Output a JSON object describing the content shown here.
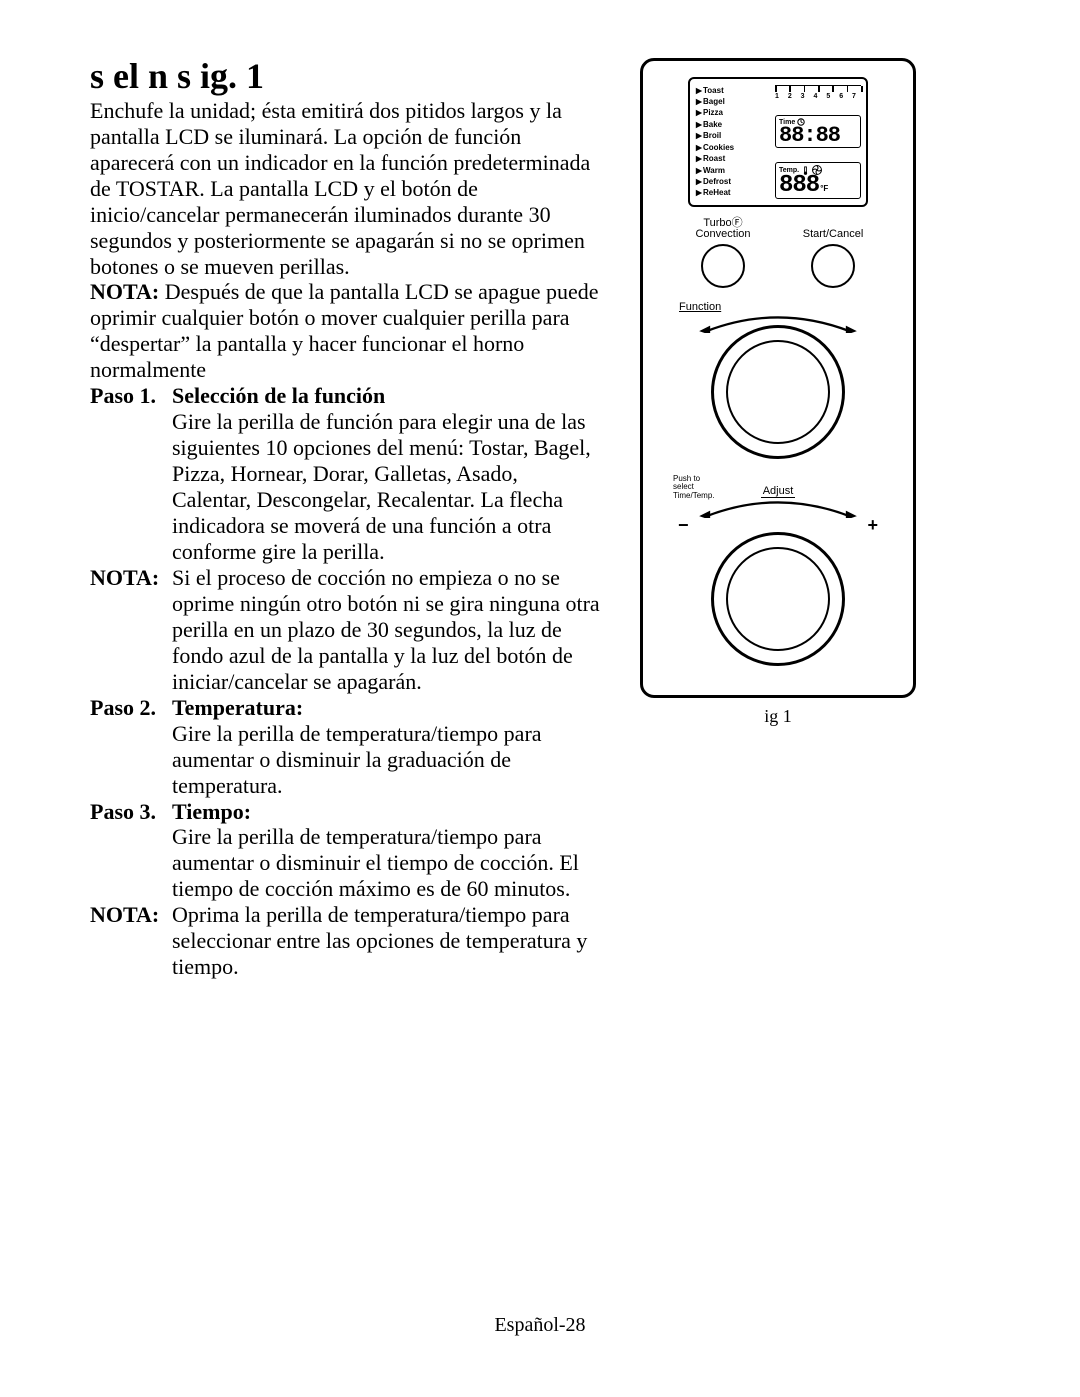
{
  "title": "s el n s  ig. 1",
  "intro": "Enchufe la unidad; ésta emitirá dos pitidos largos y la pantalla LCD se iluminará. La opción de función aparecerá con un indicador en la función predeterminada de TOSTAR.  La pantalla LCD y el botón de inicio/cancelar permanecerán iluminados durante 30 segundos y posteriormente se apagarán si no se oprimen botones o se mueven perillas.",
  "nota_intro_label": "NOTA:",
  "nota_intro_body": "Después de que la pantalla LCD se apague puede oprimir cualquier botón o mover cualquier perilla para “despertar” la pantalla y hacer funcionar el horno normalmente",
  "step1_label": "Paso 1.",
  "step1_title": "Selección de la función",
  "step1_body": "Gire la perilla de función para elegir una de las siguientes 10 opciones del menú: Tostar, Bagel, Pizza, Hornear, Dorar, Galletas, Asado, Calentar, Descongelar, Recalentar. La flecha indicadora se moverá de una función a otra conforme gire la perilla.",
  "nota1_label": "NOTA:",
  "nota1_body": "Si el proceso de cocción no empieza o no se oprime ningún otro botón ni se gira ninguna otra perilla en un plazo de 30 segundos, la luz de fondo azul de la pantalla y la luz del botón de iniciar/cancelar se apagarán.",
  "step2_label": "Paso 2.",
  "step2_title": "Temperatura:",
  "step2_body": "Gire la perilla de temperatura/tiempo para aumentar o disminuir la graduación de temperatura.",
  "step3_label": "Paso 3.",
  "step3_title": "Tiempo:",
  "step3_body": "Gire la perilla de temperatura/tiempo para aumentar o disminuir el tiempo de cocción. El tiempo de cocción máximo es de 60 minutos.",
  "nota2_label": "NOTA:",
  "nota2_body": "Oprima la perilla de temperatura/tiempo para seleccionar entre las opciones de temperatura y tiempo.",
  "fig_caption": "ig 1",
  "footer": "Español-28",
  "panel": {
    "functions": [
      "Toast",
      "Bagel",
      "Pizza",
      "Bake",
      "Broil",
      "Cookies",
      "Roast",
      "Warm",
      "Defrost",
      "ReHeat"
    ],
    "scale_nums": "1 2 3 4 5 6 7",
    "time_label": "Time",
    "time_digits": "88:88",
    "temp_label": "Temp.",
    "temp_digits": "888",
    "temp_unit": "°F",
    "convection_label": "TurboⒻ\nConvection",
    "startcancel_label": "Start/Cancel",
    "function_knob_label": "Function",
    "push_label": "Push to\nselect\nTime/Temp.",
    "adjust_label": "Adjust",
    "minus": "−",
    "plus": "+",
    "colors": {
      "stroke": "#000000",
      "bg": "#ffffff"
    }
  }
}
